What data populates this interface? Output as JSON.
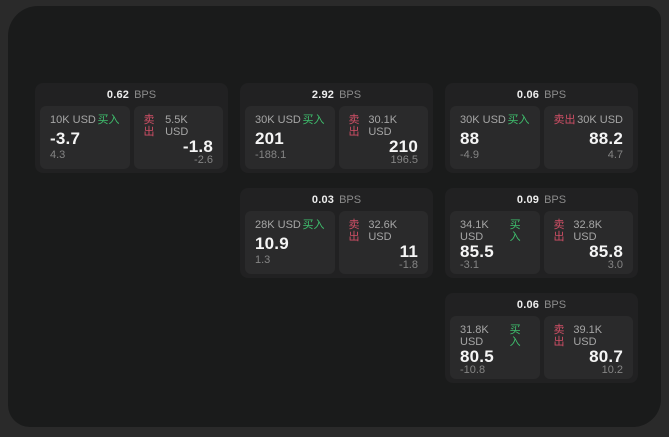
{
  "colors": {
    "background_outer": "#2a2a2a",
    "panel": "#1a1b1b",
    "card": "#212122",
    "tile": "#2a2a2b",
    "buy": "#3fc06e",
    "sell": "#d04f66"
  },
  "labels": {
    "bps": "BPS",
    "buy": "买入",
    "sell": "卖出"
  },
  "cards": [
    {
      "bps": "0.62",
      "buy": {
        "amount": "10K USD",
        "value": "-3.7",
        "sub": "4.3"
      },
      "sell": {
        "amount": "5.5K USD",
        "value": "-1.8",
        "sub": "-2.6"
      }
    },
    {
      "bps": "2.92",
      "buy": {
        "amount": "30K USD",
        "value": "201",
        "sub": "-188.1"
      },
      "sell": {
        "amount": "30.1K USD",
        "value": "210",
        "sub": "196.5"
      }
    },
    {
      "bps": "0.06",
      "buy": {
        "amount": "30K USD",
        "value": "88",
        "sub": "-4.9"
      },
      "sell": {
        "amount": "30K USD",
        "value": "88.2",
        "sub": "4.7"
      }
    },
    {
      "bps": "0.03",
      "buy": {
        "amount": "28K USD",
        "value": "10.9",
        "sub": "1.3"
      },
      "sell": {
        "amount": "32.6K USD",
        "value": "11",
        "sub": "-1.8"
      }
    },
    {
      "bps": "0.09",
      "buy": {
        "amount": "34.1K USD",
        "value": "85.5",
        "sub": "-3.1"
      },
      "sell": {
        "amount": "32.8K USD",
        "value": "85.8",
        "sub": "3.0"
      }
    },
    {
      "bps": "0.06",
      "buy": {
        "amount": "31.8K USD",
        "value": "80.5",
        "sub": "-10.8"
      },
      "sell": {
        "amount": "39.1K USD",
        "value": "80.7",
        "sub": "10.2"
      }
    }
  ]
}
